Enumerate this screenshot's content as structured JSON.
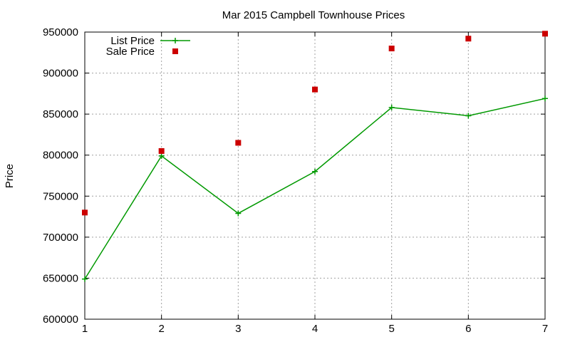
{
  "chart_data": {
    "type": "line",
    "title": "Mar 2015 Campbell Townhouse Prices",
    "xlabel": "",
    "ylabel": "Price",
    "x": [
      1,
      2,
      3,
      4,
      5,
      6,
      7
    ],
    "xlim": [
      1,
      7
    ],
    "ylim": [
      600000,
      950000
    ],
    "xticks": [
      "1",
      "2",
      "3",
      "4",
      "5",
      "6",
      "7"
    ],
    "yticks": [
      "600000",
      "650000",
      "700000",
      "750000",
      "800000",
      "850000",
      "900000",
      "950000"
    ],
    "grid": true,
    "legend_position": "top-left",
    "series": [
      {
        "name": "List Price",
        "style": "linespoints",
        "marker": "plus",
        "color": "#009900",
        "values": [
          649000,
          799000,
          729000,
          780000,
          858000,
          848000,
          869000
        ]
      },
      {
        "name": "Sale Price",
        "style": "points",
        "marker": "square",
        "color": "#cc0000",
        "values": [
          730000,
          805000,
          815000,
          880000,
          930000,
          942000,
          948000
        ]
      }
    ]
  }
}
